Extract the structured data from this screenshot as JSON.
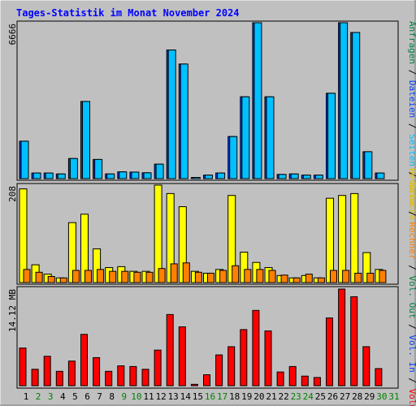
{
  "page": {
    "title": "Tages-Statistik im Monat November 2024",
    "background": "#c0c0c0",
    "title_color": "#0000ff"
  },
  "right_labels": {
    "top": [
      {
        "text": "Anfragen",
        "color": "#008040"
      },
      {
        "text": " / ",
        "color": "#000000"
      },
      {
        "text": "Dateien",
        "color": "#0040ff"
      },
      {
        "text": " / ",
        "color": "#000000"
      },
      {
        "text": "Seiten",
        "color": "#00c0ff"
      },
      {
        "text": " / ",
        "color": "#000000"
      },
      {
        "text": "Besuche",
        "color": "#e0c000"
      }
    ],
    "middle": [
      {
        "text": "Besuche",
        "color": "#e0c000"
      },
      {
        "text": " / ",
        "color": "#000000"
      },
      {
        "text": "Rechner",
        "color": "#ff8000"
      },
      {
        "text": " / ",
        "color": "#000000"
      },
      {
        "text": "Vol. Out",
        "color": "#008040"
      },
      {
        "text": " / ",
        "color": "#000000"
      },
      {
        "text": "Vol. In",
        "color": "#0040ff"
      },
      {
        "text": " / ",
        "color": "#000000"
      },
      {
        "text": "Volumen",
        "color": "#ff0000"
      }
    ]
  },
  "chart_data": [
    {
      "type": "bar",
      "title": "Tages-Statistik im Monat November 2024",
      "ylabel_max": "6666",
      "categories": [
        "1",
        "2",
        "3",
        "4",
        "5",
        "6",
        "7",
        "8",
        "9",
        "10",
        "11",
        "12",
        "13",
        "14",
        "15",
        "16",
        "17",
        "18",
        "19",
        "20",
        "21",
        "22",
        "23",
        "24",
        "25",
        "26",
        "27",
        "28",
        "29",
        "30",
        "31"
      ],
      "series": [
        {
          "name": "Anfragen",
          "color": "#008040",
          "values": [
            0,
            0,
            0,
            0,
            0,
            0,
            0,
            0,
            0,
            0,
            0,
            0,
            0,
            0,
            0,
            0,
            0,
            0,
            0,
            0,
            0,
            0,
            0,
            0,
            0,
            0,
            0,
            0,
            0,
            0,
            0
          ]
        },
        {
          "name": "Dateien",
          "color": "#0040ff",
          "values": [
            1600,
            240,
            240,
            200,
            860,
            3300,
            820,
            200,
            290,
            280,
            250,
            620,
            5500,
            4900,
            50,
            150,
            240,
            1800,
            3500,
            6666,
            3500,
            180,
            200,
            150,
            150,
            3650,
            6666,
            6250,
            1150,
            240,
            0
          ]
        },
        {
          "name": "Seiten",
          "color": "#00c0ff",
          "values": [
            1600,
            240,
            240,
            200,
            860,
            3300,
            820,
            200,
            290,
            280,
            250,
            620,
            5500,
            4900,
            50,
            150,
            240,
            1800,
            3500,
            6666,
            3500,
            180,
            200,
            150,
            150,
            3650,
            6666,
            6250,
            1150,
            240,
            0
          ]
        }
      ],
      "ylim": [
        0,
        6666
      ]
    },
    {
      "type": "bar",
      "ylabel_max": "208",
      "categories": [
        "1",
        "2",
        "3",
        "4",
        "5",
        "6",
        "7",
        "8",
        "9",
        "10",
        "11",
        "12",
        "13",
        "14",
        "15",
        "16",
        "17",
        "18",
        "19",
        "20",
        "21",
        "22",
        "23",
        "24",
        "25",
        "26",
        "27",
        "28",
        "29",
        "30",
        "31"
      ],
      "series": [
        {
          "name": "Besuche",
          "color": "#ffff00",
          "values": [
            200,
            38,
            18,
            10,
            128,
            146,
            72,
            32,
            34,
            24,
            24,
            208,
            190,
            162,
            24,
            20,
            28,
            186,
            65,
            43,
            32,
            15,
            10,
            15,
            10,
            180,
            186,
            190,
            64,
            28,
            0
          ]
        },
        {
          "name": "Rechner",
          "color": "#ff8000",
          "values": [
            28,
            22,
            13,
            10,
            26,
            26,
            28,
            24,
            24,
            22,
            22,
            30,
            40,
            42,
            22,
            20,
            26,
            36,
            28,
            28,
            26,
            16,
            10,
            18,
            10,
            26,
            26,
            20,
            20,
            26,
            0
          ]
        }
      ],
      "ylim": [
        0,
        208
      ]
    },
    {
      "type": "bar",
      "ylabel_max": "14.12 MB",
      "categories": [
        "1",
        "2",
        "3",
        "4",
        "5",
        "6",
        "7",
        "8",
        "9",
        "10",
        "11",
        "12",
        "13",
        "14",
        "15",
        "16",
        "17",
        "18",
        "19",
        "20",
        "21",
        "22",
        "23",
        "24",
        "25",
        "26",
        "27",
        "28",
        "29",
        "30",
        "31"
      ],
      "series": [
        {
          "name": "Volumen",
          "color": "#ff0000",
          "values": [
            5.5,
            2.4,
            4.3,
            2.1,
            3.6,
            7.5,
            4.1,
            2.1,
            2.9,
            2.8,
            2.4,
            5.2,
            10.4,
            8.6,
            0.2,
            1.6,
            4.5,
            5.7,
            8.2,
            11.0,
            8.0,
            2.0,
            2.8,
            1.4,
            1.2,
            9.9,
            14.12,
            13.0,
            5.7,
            2.5,
            0
          ]
        }
      ],
      "ylim": [
        0,
        14.12
      ]
    }
  ],
  "x_labels": {
    "days": [
      "1",
      "2",
      "3",
      "4",
      "5",
      "6",
      "7",
      "8",
      "9",
      "10",
      "11",
      "12",
      "13",
      "14",
      "15",
      "16",
      "17",
      "18",
      "19",
      "20",
      "21",
      "22",
      "23",
      "24",
      "25",
      "26",
      "27",
      "28",
      "29",
      "30",
      "31"
    ],
    "weekend": [
      2,
      3,
      9,
      10,
      16,
      17,
      23,
      24,
      30,
      31
    ],
    "weekday_color": "#000000",
    "weekend_color": "#008000"
  }
}
